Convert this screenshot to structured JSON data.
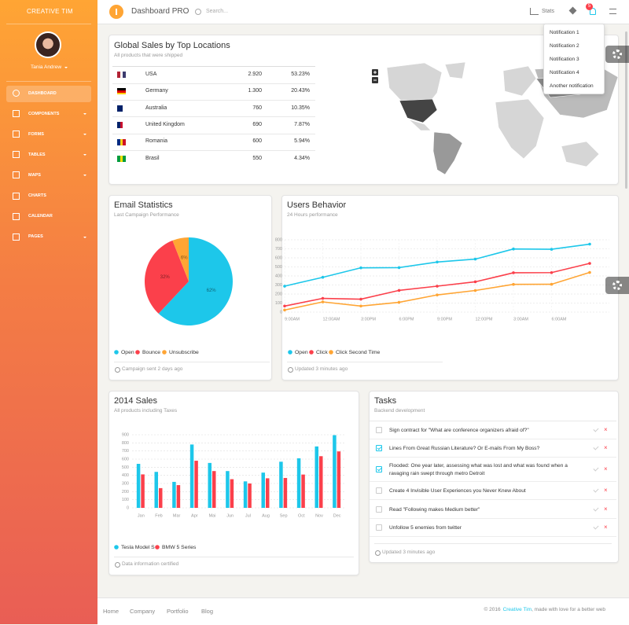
{
  "sidebar": {
    "brand": "CREATIVE TIM",
    "user": "Tania Andrew",
    "menu": [
      "DASHBOARD",
      "COMPONENTS",
      "FORMS",
      "TABLES",
      "MAPS",
      "CHARTS",
      "CALENDAR",
      "PAGES"
    ]
  },
  "navbar": {
    "title": "Dashboard PRO",
    "search": "Search...",
    "stats": "Stats",
    "badge": "5",
    "notifications": [
      "Notification 1",
      "Notification 2",
      "Notification 3",
      "Notification 4",
      "Another notification"
    ]
  },
  "sales_card": {
    "title": "Global Sales by Top Locations",
    "subtitle": "All products that were shipped",
    "rows": [
      [
        "USA",
        "2.920",
        "53.23%"
      ],
      [
        "Germany",
        "1.300",
        "20.43%"
      ],
      [
        "Australia",
        "760",
        "10.35%"
      ],
      [
        "United Kingdom",
        "690",
        "7.87%"
      ],
      [
        "Romania",
        "600",
        "5.94%"
      ],
      [
        "Brasil",
        "550",
        "4.34%"
      ]
    ]
  },
  "chart_data": [
    {
      "type": "pie",
      "title": "Email Statistics",
      "subtitle": "Last Campaign Performance",
      "categories": [
        "Open",
        "Bounce",
        "Unsubscribe"
      ],
      "values": [
        62,
        32,
        6
      ],
      "value_labels": [
        "62%",
        "32%",
        "6%"
      ],
      "colors": [
        "#1dc7ea",
        "#fb404b",
        "#ffa534"
      ],
      "footnote": "Campaign sent 2 days ago"
    },
    {
      "type": "line",
      "title": "Users Behavior",
      "subtitle": "24 Hours performance",
      "categories": [
        "9:00AM",
        "12:00AM",
        "3:00PM",
        "6:00PM",
        "9:00PM",
        "12:00PM",
        "3:00AM",
        "6:00AM",
        null
      ],
      "series": [
        {
          "name": "Open",
          "color": "#1dc7ea",
          "values": [
            287,
            385,
            490,
            492,
            554,
            586,
            698,
            695,
            752
          ]
        },
        {
          "name": "Click",
          "color": "#fb404b",
          "values": [
            67,
            152,
            143,
            240,
            287,
            335,
            435,
            437,
            539
          ]
        },
        {
          "name": "Click Second Time",
          "color": "#ffa534",
          "values": [
            23,
            113,
            67,
            108,
            190,
            239,
            307,
            308,
            439
          ]
        }
      ],
      "ylim": [
        0,
        800
      ],
      "yticks": [
        0,
        100,
        200,
        300,
        400,
        500,
        600,
        700,
        800
      ],
      "grid": true,
      "footnote": "Updated 3 minutes ago"
    },
    {
      "type": "bar",
      "title": "2014 Sales",
      "subtitle": "All products including Taxes",
      "categories": [
        "Jan",
        "Feb",
        "Mar",
        "Apr",
        "Mai",
        "Jun",
        "Jul",
        "Aug",
        "Sep",
        "Oct",
        "Nov",
        "Dec"
      ],
      "series": [
        {
          "name": "Tesla Model S",
          "color": "#1dc7ea",
          "values": [
            542,
            443,
            320,
            780,
            553,
            453,
            326,
            434,
            568,
            610,
            756,
            895
          ]
        },
        {
          "name": "BMW 5 Series",
          "color": "#fb404b",
          "values": [
            412,
            243,
            280,
            580,
            453,
            353,
            300,
            364,
            368,
            410,
            636,
            695
          ]
        }
      ],
      "ylim": [
        0,
        900
      ],
      "yticks": [
        0,
        100,
        200,
        300,
        400,
        500,
        600,
        700,
        800,
        900
      ],
      "grid": true,
      "footnote": "Data information certified"
    }
  ],
  "tasks": {
    "title": "Tasks",
    "subtitle": "Backend development",
    "items": [
      "Sign contract for \"What are conference organizers afraid of?\"",
      "Lines From Great Russian Literature? Or E-mails From My Boss?",
      "Flooded: One year later, assessing what was lost and what was found when a ravaging rain swept through metro Detroit",
      "Create 4 Invisible User Experiences you Never Knew About",
      "Read \"Following makes Medium better\"",
      "Unfollow 5 enemies from twitter"
    ],
    "checked": [
      false,
      true,
      true,
      false,
      false,
      false
    ],
    "footnote": "Updated 3 minutes ago"
  },
  "footer": {
    "links": [
      "Home",
      "Company",
      "Portfolio",
      "Blog"
    ],
    "copyright": "© 2016",
    "brand": "Creative Tim",
    "tagline": ", made with love for a better web"
  }
}
